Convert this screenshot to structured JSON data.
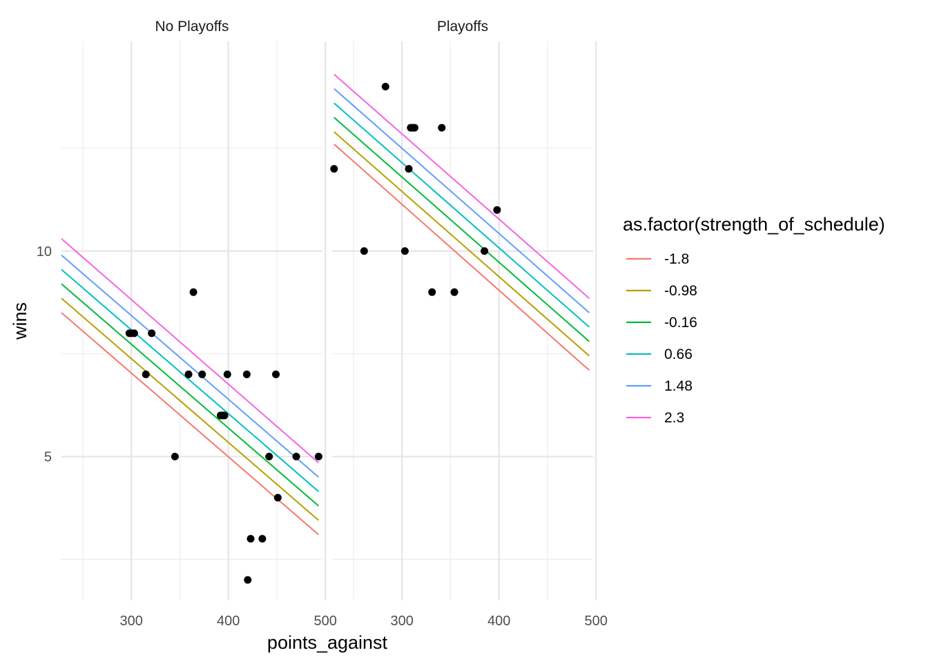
{
  "chart_data": {
    "type": "scatter",
    "xlabel": "points_against",
    "ylabel": "wins",
    "xlim": [
      228,
      497
    ],
    "ylim": [
      1.5,
      15.1
    ],
    "x_ticks": [
      300,
      400,
      500
    ],
    "x_tick_labels": [
      "300",
      "400",
      "500"
    ],
    "x_minor_ticks": [
      250,
      350,
      450
    ],
    "y_ticks": [
      5,
      10
    ],
    "y_tick_labels": [
      "5",
      "10"
    ],
    "y_minor_ticks": [
      2.5,
      7.5,
      12.5
    ],
    "grid": true,
    "legend": {
      "title": "as.factor(strength_of_schedule)",
      "placement": "right",
      "entries": [
        {
          "label": "-1.8",
          "color": "#F8766D"
        },
        {
          "label": "-0.98",
          "color": "#B79F00"
        },
        {
          "label": "-0.16",
          "color": "#00BA38"
        },
        {
          "label": "0.66",
          "color": "#00BFC4"
        },
        {
          "label": "1.48",
          "color": "#619CFF"
        },
        {
          "label": "2.3",
          "color": "#F564E3"
        }
      ]
    },
    "panels": [
      {
        "title": "No Playoffs",
        "points": [
          {
            "x": 298,
            "y": 8
          },
          {
            "x": 300,
            "y": 8
          },
          {
            "x": 303,
            "y": 8
          },
          {
            "x": 315,
            "y": 7
          },
          {
            "x": 321,
            "y": 8
          },
          {
            "x": 345,
            "y": 5
          },
          {
            "x": 359,
            "y": 7
          },
          {
            "x": 364,
            "y": 9
          },
          {
            "x": 373,
            "y": 7
          },
          {
            "x": 392,
            "y": 6
          },
          {
            "x": 394,
            "y": 6
          },
          {
            "x": 396,
            "y": 6
          },
          {
            "x": 399,
            "y": 7
          },
          {
            "x": 419,
            "y": 7
          },
          {
            "x": 420,
            "y": 2
          },
          {
            "x": 423,
            "y": 3
          },
          {
            "x": 435,
            "y": 3
          },
          {
            "x": 442,
            "y": 5
          },
          {
            "x": 449,
            "y": 7
          },
          {
            "x": 451,
            "y": 4
          },
          {
            "x": 470,
            "y": 5
          },
          {
            "x": 493,
            "y": 5
          }
        ],
        "lines": [
          {
            "series": "-1.8",
            "x": [
              228,
              493
            ],
            "y": [
              8.5,
              3.1
            ]
          },
          {
            "series": "-0.98",
            "x": [
              228,
              493
            ],
            "y": [
              8.85,
              3.45
            ]
          },
          {
            "series": "-0.16",
            "x": [
              228,
              493
            ],
            "y": [
              9.2,
              3.8
            ]
          },
          {
            "series": "0.66",
            "x": [
              228,
              493
            ],
            "y": [
              9.55,
              4.15
            ]
          },
          {
            "series": "1.48",
            "x": [
              228,
              493
            ],
            "y": [
              9.9,
              4.5
            ]
          },
          {
            "series": "2.3",
            "x": [
              228,
              493
            ],
            "y": [
              10.3,
              4.85
            ]
          }
        ]
      },
      {
        "title": "Playoffs",
        "points": [
          {
            "x": 230,
            "y": 12
          },
          {
            "x": 261,
            "y": 10
          },
          {
            "x": 283,
            "y": 14
          },
          {
            "x": 303,
            "y": 10
          },
          {
            "x": 307,
            "y": 12
          },
          {
            "x": 309,
            "y": 13
          },
          {
            "x": 311,
            "y": 13
          },
          {
            "x": 313,
            "y": 13
          },
          {
            "x": 331,
            "y": 9
          },
          {
            "x": 341,
            "y": 13
          },
          {
            "x": 354,
            "y": 9
          },
          {
            "x": 385,
            "y": 10
          },
          {
            "x": 398,
            "y": 11
          }
        ],
        "lines": [
          {
            "series": "-1.8",
            "x": [
              230,
              493
            ],
            "y": [
              12.6,
              7.1
            ]
          },
          {
            "series": "-0.98",
            "x": [
              230,
              493
            ],
            "y": [
              12.9,
              7.45
            ]
          },
          {
            "series": "-0.16",
            "x": [
              230,
              493
            ],
            "y": [
              13.25,
              7.8
            ]
          },
          {
            "series": "0.66",
            "x": [
              230,
              493
            ],
            "y": [
              13.6,
              8.15
            ]
          },
          {
            "series": "1.48",
            "x": [
              230,
              493
            ],
            "y": [
              13.95,
              8.5
            ]
          },
          {
            "series": "2.3",
            "x": [
              230,
              493
            ],
            "y": [
              14.3,
              8.85
            ]
          }
        ]
      }
    ]
  }
}
